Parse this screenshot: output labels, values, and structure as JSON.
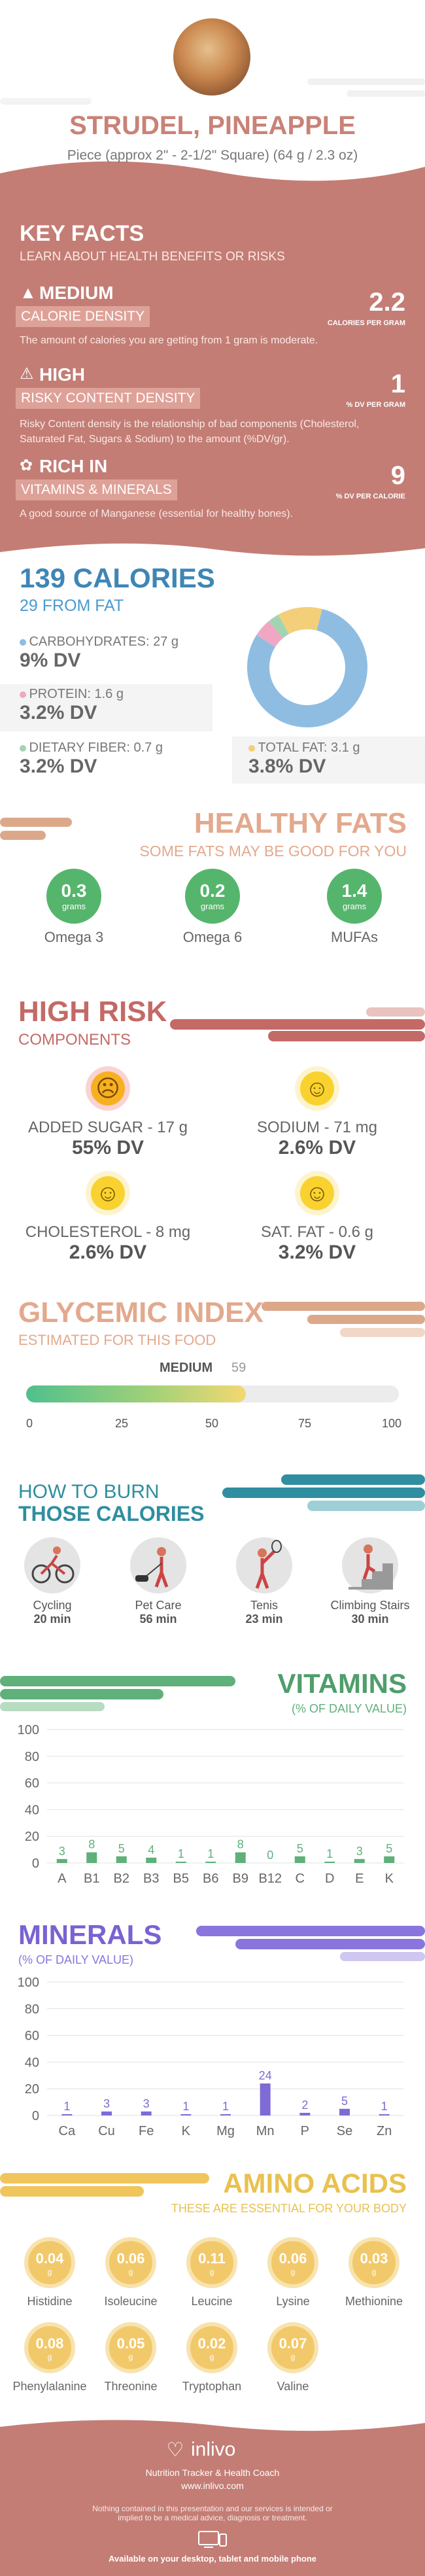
{
  "header": {
    "title": "STRUDEL, PINEAPPLE",
    "subtitle": "Piece (approx 2\" - 2-1/2\" Square) (64 g / 2.3 oz)"
  },
  "key_facts": {
    "title": "KEY FACTS",
    "subtitle": "LEARN ABOUT HEALTH BENEFITS OR RISKS",
    "items": [
      {
        "level": "MEDIUM",
        "label": "CALORIE DENSITY",
        "value": "2.2",
        "unit": "CALORIES PER GRAM",
        "desc": "The amount of calories you are getting from 1 gram is moderate.",
        "icon": "flame-icon"
      },
      {
        "level": "HIGH",
        "label": "RISKY CONTENT DENSITY",
        "value": "1",
        "unit": "% DV PER GRAM",
        "desc": "Risky Content density is the relationship of bad components (Cholesterol, Saturated Fat, Sugars & Sodium) to the amount (%DV/gr).",
        "icon": "warning-icon"
      },
      {
        "level": "RICH IN",
        "label": "VITAMINS & MINERALS",
        "value": "9",
        "unit": "% DV PER CALORIE",
        "desc": "A good source of Manganese (essential for healthy bones).",
        "icon": "leaf-icon"
      }
    ]
  },
  "calories": {
    "title": "139 CALORIES",
    "from_fat": "29 FROM FAT",
    "carbs_label": "CARBOHYDRATES: 27 g",
    "carbs_dv": "9% DV",
    "protein_label": "PROTEIN: 1.6 g",
    "protein_dv": "3.2% DV",
    "fiber_label": "DIETARY FIBER: 0.7 g",
    "fiber_dv": "3.2% DV",
    "fat_label": "TOTAL FAT: 3.1 g",
    "fat_dv": "3.8% DV",
    "colors": {
      "carbs": "#8fbde2",
      "protein": "#f0a7c3",
      "fiber": "#a3d4b0",
      "fat": "#f3cf7a"
    },
    "donut_fractions": {
      "carbs": 0.8,
      "protein": 0.05,
      "fiber": 0.03,
      "fat": 0.12
    }
  },
  "healthy_fats": {
    "title": "HEALTHY FATS",
    "subtitle": "SOME FATS MAY BE GOOD FOR YOU",
    "unit": "grams",
    "items": [
      {
        "value": "0.3",
        "label": "Omega 3"
      },
      {
        "value": "0.2",
        "label": "Omega 6"
      },
      {
        "value": "1.4",
        "label": "MUFAs"
      }
    ]
  },
  "high_risk": {
    "title": "HIGH RISK",
    "subtitle": "COMPONENTS",
    "items": [
      {
        "label": "ADDED SUGAR - 17 g",
        "dv": "55% DV",
        "mood": "sad"
      },
      {
        "label": "SODIUM - 71 mg",
        "dv": "2.6% DV",
        "mood": "happy"
      },
      {
        "label": "CHOLESTEROL - 8 mg",
        "dv": "2.6% DV",
        "mood": "happy"
      },
      {
        "label": "SAT. FAT - 0.6 g",
        "dv": "3.2% DV",
        "mood": "happy"
      }
    ]
  },
  "glycemic": {
    "title": "GLYCEMIC INDEX",
    "subtitle": "ESTIMATED FOR THIS FOOD",
    "level": "MEDIUM",
    "value": "59",
    "ticks": [
      "0",
      "25",
      "50",
      "75",
      "100"
    ]
  },
  "burn": {
    "title1": "HOW TO BURN",
    "title2": "THOSE CALORIES",
    "items": [
      {
        "label": "Cycling",
        "time": "20 min",
        "icon": "cycling-icon"
      },
      {
        "label": "Pet Care",
        "time": "56 min",
        "icon": "pet-care-icon"
      },
      {
        "label": "Tenis",
        "time": "23 min",
        "icon": "tennis-icon"
      },
      {
        "label": "Climbing Stairs",
        "time": "30 min",
        "icon": "stairs-icon"
      }
    ]
  },
  "vitamins": {
    "title": "VITAMINS",
    "subtitle": "(% OF DAILY VALUE)",
    "chart_data": {
      "type": "bar",
      "categories": [
        "A",
        "B1",
        "B2",
        "B3",
        "B5",
        "B6",
        "B9",
        "B12",
        "C",
        "D",
        "E",
        "K"
      ],
      "values": [
        3,
        8,
        5,
        4,
        1,
        1,
        8,
        0,
        5,
        1,
        3,
        5
      ],
      "ylim": [
        0,
        100
      ],
      "yticks": [
        "0",
        "20",
        "40",
        "60",
        "80",
        "100"
      ],
      "color": "#5fb07a"
    }
  },
  "minerals": {
    "title": "MINERALS",
    "subtitle": "(% OF DAILY VALUE)",
    "chart_data": {
      "type": "bar",
      "categories": [
        "Ca",
        "Cu",
        "Fe",
        "K",
        "Mg",
        "Mn",
        "P",
        "Se",
        "Zn"
      ],
      "values": [
        1,
        3,
        3,
        1,
        1,
        24,
        2,
        5,
        1
      ],
      "ylim": [
        0,
        100
      ],
      "yticks": [
        "0",
        "20",
        "40",
        "60",
        "80",
        "100"
      ],
      "color": "#7f6ad6"
    }
  },
  "amino": {
    "title": "AMINO ACIDS",
    "subtitle": "THESE ARE ESSENTIAL FOR YOUR BODY",
    "unit": "g",
    "items": [
      {
        "value": "0.04",
        "label": "Histidine"
      },
      {
        "value": "0.06",
        "label": "Isoleucine"
      },
      {
        "value": "0.11",
        "label": "Leucine"
      },
      {
        "value": "0.06",
        "label": "Lysine"
      },
      {
        "value": "0.03",
        "label": "Methionine"
      },
      {
        "value": "0.08",
        "label": "Phenylalanine"
      },
      {
        "value": "0.05",
        "label": "Threonine"
      },
      {
        "value": "0.02",
        "label": "Tryptophan"
      },
      {
        "value": "0.07",
        "label": "Valine"
      }
    ]
  },
  "footer": {
    "brand": "inlivo",
    "tagline": "Nutrition Tracker & Health Coach",
    "url": "www.inlivo.com",
    "disclaimer": "Nothing contained in this presentation and our services is intended or implied to be a medical advice, diagnosis or treatment.",
    "available": "Available on your desktop, tablet and mobile phone"
  }
}
